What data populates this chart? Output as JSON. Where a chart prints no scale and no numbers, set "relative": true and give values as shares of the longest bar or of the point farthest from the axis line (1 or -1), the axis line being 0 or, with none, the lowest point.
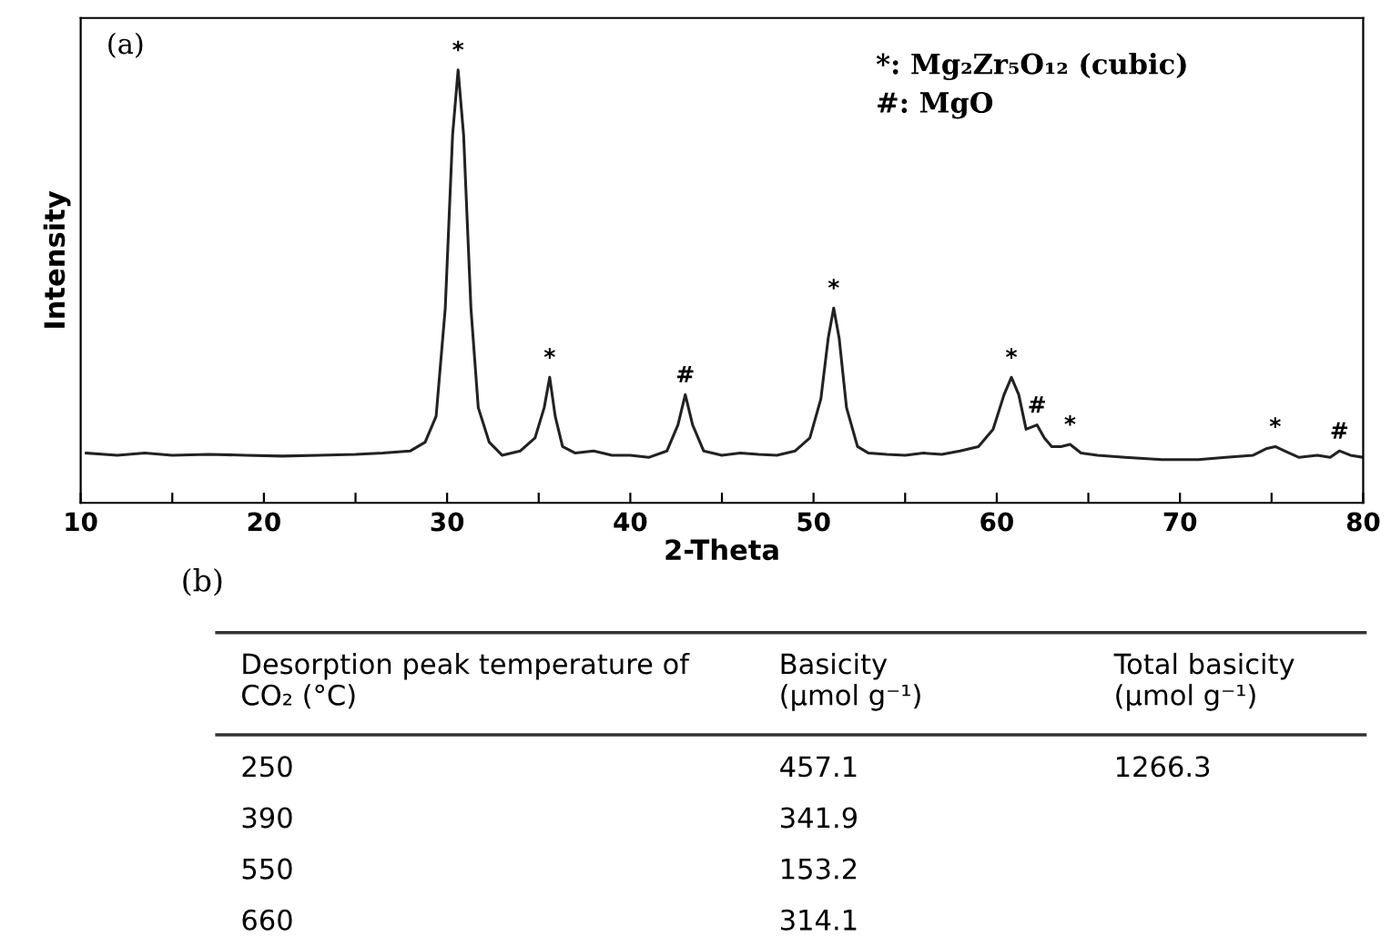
{
  "chart_data": [
    {
      "type": "line",
      "relative": true,
      "xlabel": "2-Theta",
      "ylabel": "Intensity",
      "xlim": [
        10,
        80
      ],
      "xticks": [
        10,
        {
          "value": 15,
          "label": null
        },
        20,
        {
          "value": 25,
          "label": null
        },
        30,
        {
          "value": 35,
          "label": null
        },
        40,
        {
          "value": 45,
          "label": null
        },
        50,
        {
          "value": 55,
          "label": null
        },
        60,
        {
          "value": 65,
          "label": null
        },
        70,
        {
          "value": 75,
          "label": null
        },
        80
      ],
      "tick_labels": "x",
      "grid": false,
      "line_style": "solid",
      "marker": "none",
      "series": [
        {
          "color": "#222222",
          "x": [
            10.3,
            12,
            13.5,
            15,
            17,
            19,
            21,
            23,
            25,
            26.5,
            28,
            28.8,
            29.4,
            29.9,
            30.3,
            30.6,
            30.9,
            31.3,
            31.7,
            32.3,
            33,
            34,
            34.8,
            35.3,
            35.6,
            35.9,
            36.3,
            37,
            38,
            39,
            40,
            41,
            42,
            42.6,
            43,
            43.4,
            44,
            45,
            46,
            47,
            48,
            49,
            49.8,
            50.4,
            50.8,
            51.1,
            51.4,
            51.8,
            52.4,
            53,
            54,
            55,
            56,
            57,
            58,
            59,
            59.8,
            60.4,
            60.8,
            61.2,
            61.6,
            62.2,
            62.6,
            63,
            63.5,
            64,
            64.6,
            65.5,
            67,
            69,
            71,
            72.5,
            74,
            74.7,
            75.2,
            75.7,
            76.5,
            77.5,
            78.2,
            78.7,
            79.3,
            80
          ],
          "values": [
            0.115,
            0.11,
            0.115,
            0.11,
            0.112,
            0.11,
            0.108,
            0.11,
            0.112,
            0.115,
            0.12,
            0.14,
            0.2,
            0.45,
            0.85,
            1.0,
            0.85,
            0.45,
            0.22,
            0.14,
            0.11,
            0.12,
            0.15,
            0.22,
            0.29,
            0.2,
            0.13,
            0.115,
            0.12,
            0.11,
            0.11,
            0.105,
            0.12,
            0.18,
            0.25,
            0.18,
            0.12,
            0.11,
            0.115,
            0.112,
            0.11,
            0.12,
            0.15,
            0.24,
            0.38,
            0.45,
            0.38,
            0.22,
            0.13,
            0.115,
            0.112,
            0.11,
            0.115,
            0.112,
            0.12,
            0.13,
            0.17,
            0.25,
            0.29,
            0.25,
            0.17,
            0.18,
            0.15,
            0.13,
            0.13,
            0.135,
            0.115,
            0.11,
            0.105,
            0.1,
            0.1,
            0.105,
            0.11,
            0.125,
            0.13,
            0.12,
            0.105,
            0.11,
            0.105,
            0.12,
            0.11,
            0.105
          ]
        }
      ],
      "annotations": [
        "(a)",
        "*: Mg₂Zr₅O₁₂ (cubic)",
        "#: MgO",
        {
          "text": "*",
          "x": 30.6,
          "y": 1.0
        },
        {
          "text": "*",
          "x": 35.6,
          "y": 0.29
        },
        {
          "text": "#",
          "x": 43,
          "y": 0.25
        },
        {
          "text": "*",
          "x": 51.1,
          "y": 0.45
        },
        {
          "text": "*",
          "x": 60.8,
          "y": 0.29
        },
        {
          "text": "#",
          "x": 62.2,
          "y": 0.18
        },
        {
          "text": "*",
          "x": 64,
          "y": 0.135
        },
        {
          "text": "*",
          "x": 75.2,
          "y": 0.13
        },
        {
          "text": "#",
          "x": 78.7,
          "y": 0.12
        }
      ]
    },
    {
      "type": "other",
      "title": "(b)",
      "annotations": [
        "Desorption peak temperature of\nCO₂ (°C)",
        "Basicity\n(μmol g⁻¹)",
        "Total basicity\n(μmol g⁻¹)",
        "250",
        "457.1",
        "1266.3",
        "390",
        "341.9",
        "550",
        "153.2",
        "660",
        "314.1"
      ]
    }
  ]
}
